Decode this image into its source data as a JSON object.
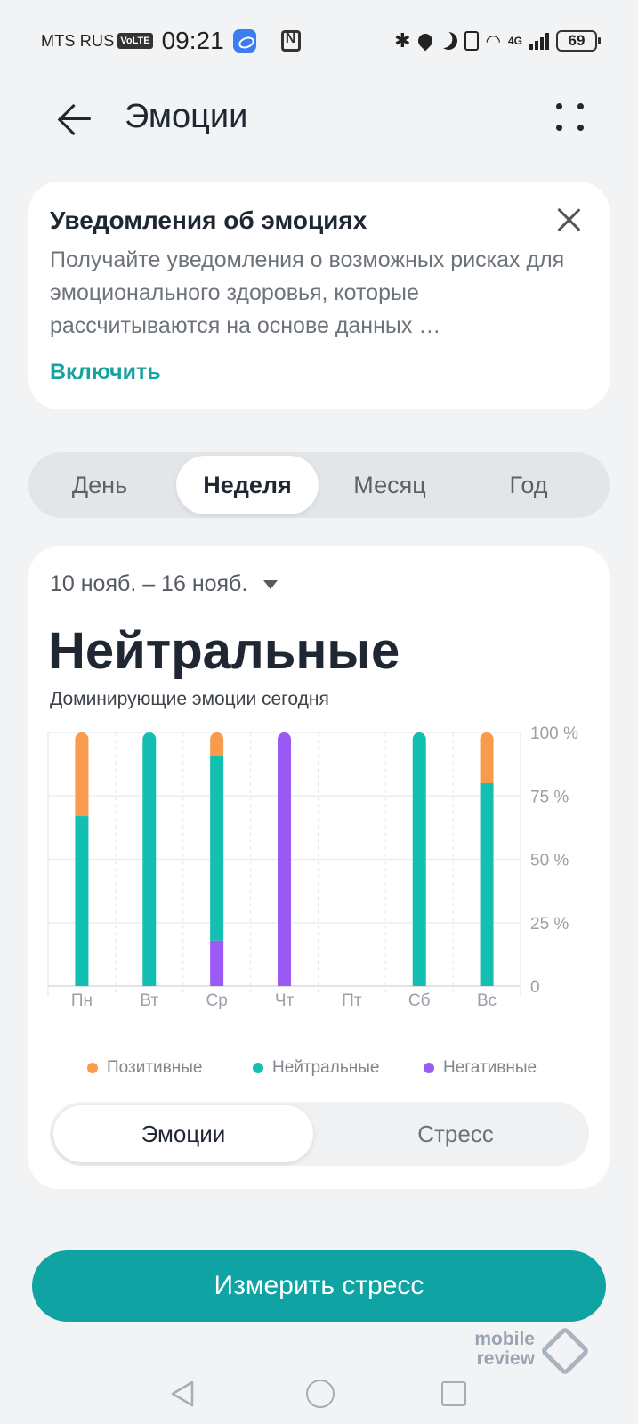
{
  "status_bar": {
    "carrier": "MTS RUS",
    "volte": "VoLTE",
    "time": "09:21",
    "network": "4G",
    "battery": "69"
  },
  "header": {
    "title": "Эмоции",
    "back_icon": "arrow-left-icon",
    "more_icon": "four-dots-icon"
  },
  "notification": {
    "title": "Уведомления об эмоциях",
    "text": "Получайте уведомления о возможных рисках для эмоционального здоровья, которые рассчитываются на основе данных …",
    "action": "Включить"
  },
  "period_tabs": [
    {
      "label": "День",
      "active": false
    },
    {
      "label": "Неделя",
      "active": true
    },
    {
      "label": "Месяц",
      "active": false
    },
    {
      "label": "Год",
      "active": false
    }
  ],
  "summary": {
    "date_range": "10 нояб. – 16 нояб.",
    "dominant": "Нейтральные",
    "subtitle": "Доминирующие эмоции сегодня"
  },
  "chart_data": {
    "type": "bar",
    "stacked": true,
    "categories": [
      "Пн",
      "Вт",
      "Ср",
      "Чт",
      "Пт",
      "Сб",
      "Вс"
    ],
    "series": [
      {
        "name": "Негативные",
        "color": "#9b59f5",
        "values": [
          0,
          0,
          18,
          100,
          0,
          0,
          0
        ]
      },
      {
        "name": "Нейтральные",
        "color": "#13bfb0",
        "values": [
          67,
          100,
          73,
          0,
          0,
          100,
          80
        ]
      },
      {
        "name": "Позитивные",
        "color": "#f89b4c",
        "values": [
          33,
          0,
          9,
          0,
          0,
          0,
          20
        ]
      }
    ],
    "y_ticks": [
      "0",
      "25 %",
      "50 %",
      "75 %",
      "100 %"
    ],
    "ylim": [
      0,
      100
    ],
    "grid": true,
    "legend_position": "bottom"
  },
  "legend": [
    {
      "label": "Позитивные",
      "color": "#f89b4c"
    },
    {
      "label": "Нейтральные",
      "color": "#13bfb0"
    },
    {
      "label": "Негативные",
      "color": "#9b59f5"
    }
  ],
  "segment": {
    "active": "Эмоции",
    "inactive": "Стресс"
  },
  "primary_button": "Измерить стресс",
  "watermark": {
    "line1": "mobile",
    "line2": "review"
  }
}
